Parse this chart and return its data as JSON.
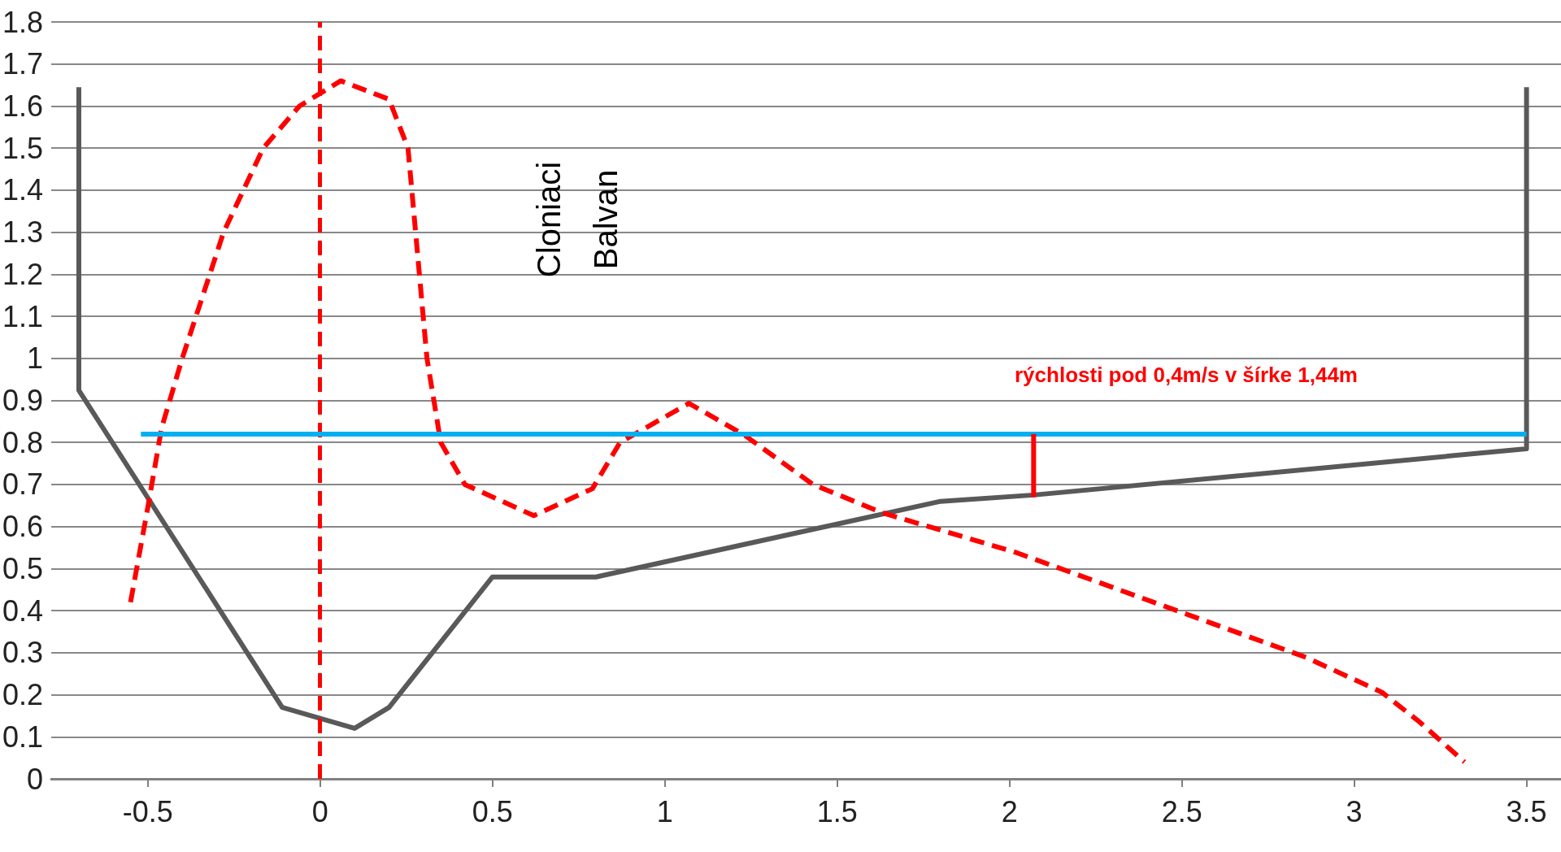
{
  "chart_data": {
    "type": "line",
    "xlim": [
      -0.78,
      3.6
    ],
    "ylim": [
      0,
      1.8
    ],
    "xticks": [
      -0.5,
      0,
      0.5,
      1,
      1.5,
      2,
      2.5,
      3,
      3.5
    ],
    "yticks": [
      0,
      0.1,
      0.2,
      0.3,
      0.4,
      0.5,
      0.6,
      0.7,
      0.8,
      0.9,
      1,
      1.1,
      1.2,
      1.3,
      1.4,
      1.5,
      1.6,
      1.7,
      1.8
    ],
    "grid": "y",
    "marker": "none",
    "series": [
      {
        "color": "#595959",
        "line_style": "solid",
        "x": [
          -0.7,
          -0.7,
          -0.11,
          0.1,
          0.2,
          0.5,
          0.8,
          1.8,
          2.07,
          3.5,
          3.5
        ],
        "values": [
          1.645,
          0.924,
          0.17,
          0.12,
          0.17,
          0.48,
          0.48,
          0.66,
          0.675,
          0.785,
          1.645
        ]
      },
      {
        "color": "#ff0000",
        "line_style": "dashed",
        "x": [
          -0.55,
          -0.5,
          -0.46,
          -0.4,
          -0.28,
          -0.165,
          -0.06,
          0.06,
          0.2,
          0.255,
          0.31,
          0.35,
          0.42,
          0.62,
          0.79,
          0.87,
          1.07,
          1.23,
          1.43,
          1.63,
          2.02,
          2.3,
          2.58,
          2.86,
          3.08,
          3.19,
          3.32
        ],
        "values": [
          0.42,
          0.645,
          0.834,
          1.0,
          1.3,
          1.5,
          1.6,
          1.66,
          1.616,
          1.5,
          1.0,
          0.8,
          0.7,
          0.626,
          0.69,
          0.8,
          0.893,
          0.818,
          0.7,
          0.633,
          0.538,
          0.455,
          0.372,
          0.289,
          0.206,
          0.135,
          0.04
        ]
      },
      {
        "color": "#00b0f0",
        "line_style": "solid",
        "x": [
          -0.52,
          3.5
        ],
        "values": [
          0.82,
          0.82
        ]
      },
      {
        "color": "#ff0000",
        "line_style": "solid",
        "x": [
          2.07,
          2.07
        ],
        "values": [
          0.82,
          0.67
        ]
      }
    ],
    "ref_lines": [
      {
        "axis": "x",
        "value": 0,
        "color": "#ff0000",
        "line_style": "dashed"
      }
    ],
    "annotations": [
      "Cloniaci\nBalvan",
      "rýchlosti pod 0,4m/s v šírke 1,44m"
    ]
  }
}
